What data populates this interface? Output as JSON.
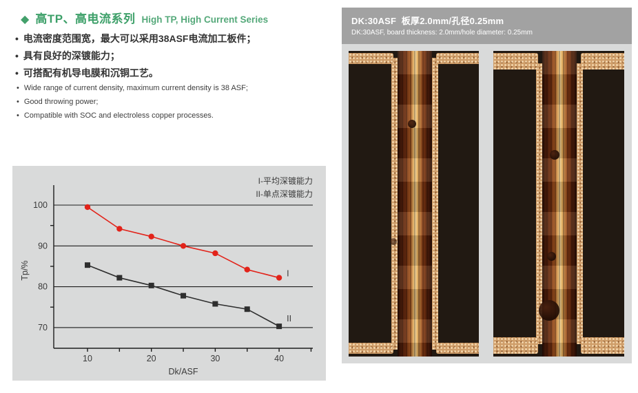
{
  "header": {
    "diamond_icon": "◆",
    "title_cn": "高TP、高电流系列",
    "title_en": "High TP, High Current Series",
    "accent_color": "#43a06b"
  },
  "bullet_glyph": "•",
  "bullets_cn": [
    "电流密度范围宽，最大可以采用38ASF电流加工板件；",
    "具有良好的深镀能力；",
    "可搭配有机导电膜和沉铜工艺。"
  ],
  "bullets_en": [
    "Wide range of current density, maximum current density is 38 ASF;",
    "Good throwing power;",
    "Compatible with SOC and electroless copper processes."
  ],
  "chart_data": {
    "type": "line",
    "title": "",
    "xlabel": "Dk/ASF",
    "ylabel": "Tp/%",
    "x": [
      10,
      15,
      20,
      25,
      30,
      35,
      40
    ],
    "series": [
      {
        "name": "I-平均深镀能力",
        "short_label": "I",
        "color": "#e2231a",
        "marker": "circle",
        "values": [
          99.5,
          94.2,
          92.3,
          90.0,
          88.2,
          84.2,
          82.2
        ]
      },
      {
        "name": "II-单点深镀能力",
        "short_label": "II",
        "color": "#2e2e2e",
        "marker": "square",
        "values": [
          85.3,
          82.2,
          80.3,
          77.8,
          75.8,
          74.5,
          70.3
        ]
      }
    ],
    "xlim": [
      5,
      45
    ],
    "ylim": [
      65,
      105
    ],
    "yticks": [
      70,
      80,
      90,
      100
    ],
    "y_minor_ticks": [
      75,
      85,
      95
    ],
    "xticks": [
      10,
      15,
      20,
      25,
      30,
      35,
      40,
      45
    ],
    "xtick_labels": [
      10,
      20,
      30,
      40
    ],
    "grid": "horizontal",
    "legend_position": "top-right",
    "panel_bg": "#d9dada"
  },
  "photo_panel": {
    "header_bg": "#a2a2a2",
    "title_cn": "DK:30ASF  板厚2.0mm/孔径0.25mm",
    "title_en": "DK:30ASF, board thickness: 2.0mm/hole diameter: 0.25mm",
    "body_bg": "#d9dada",
    "photos": [
      {
        "name": "via-cross-section-photo-1"
      },
      {
        "name": "via-cross-section-photo-2"
      }
    ]
  }
}
